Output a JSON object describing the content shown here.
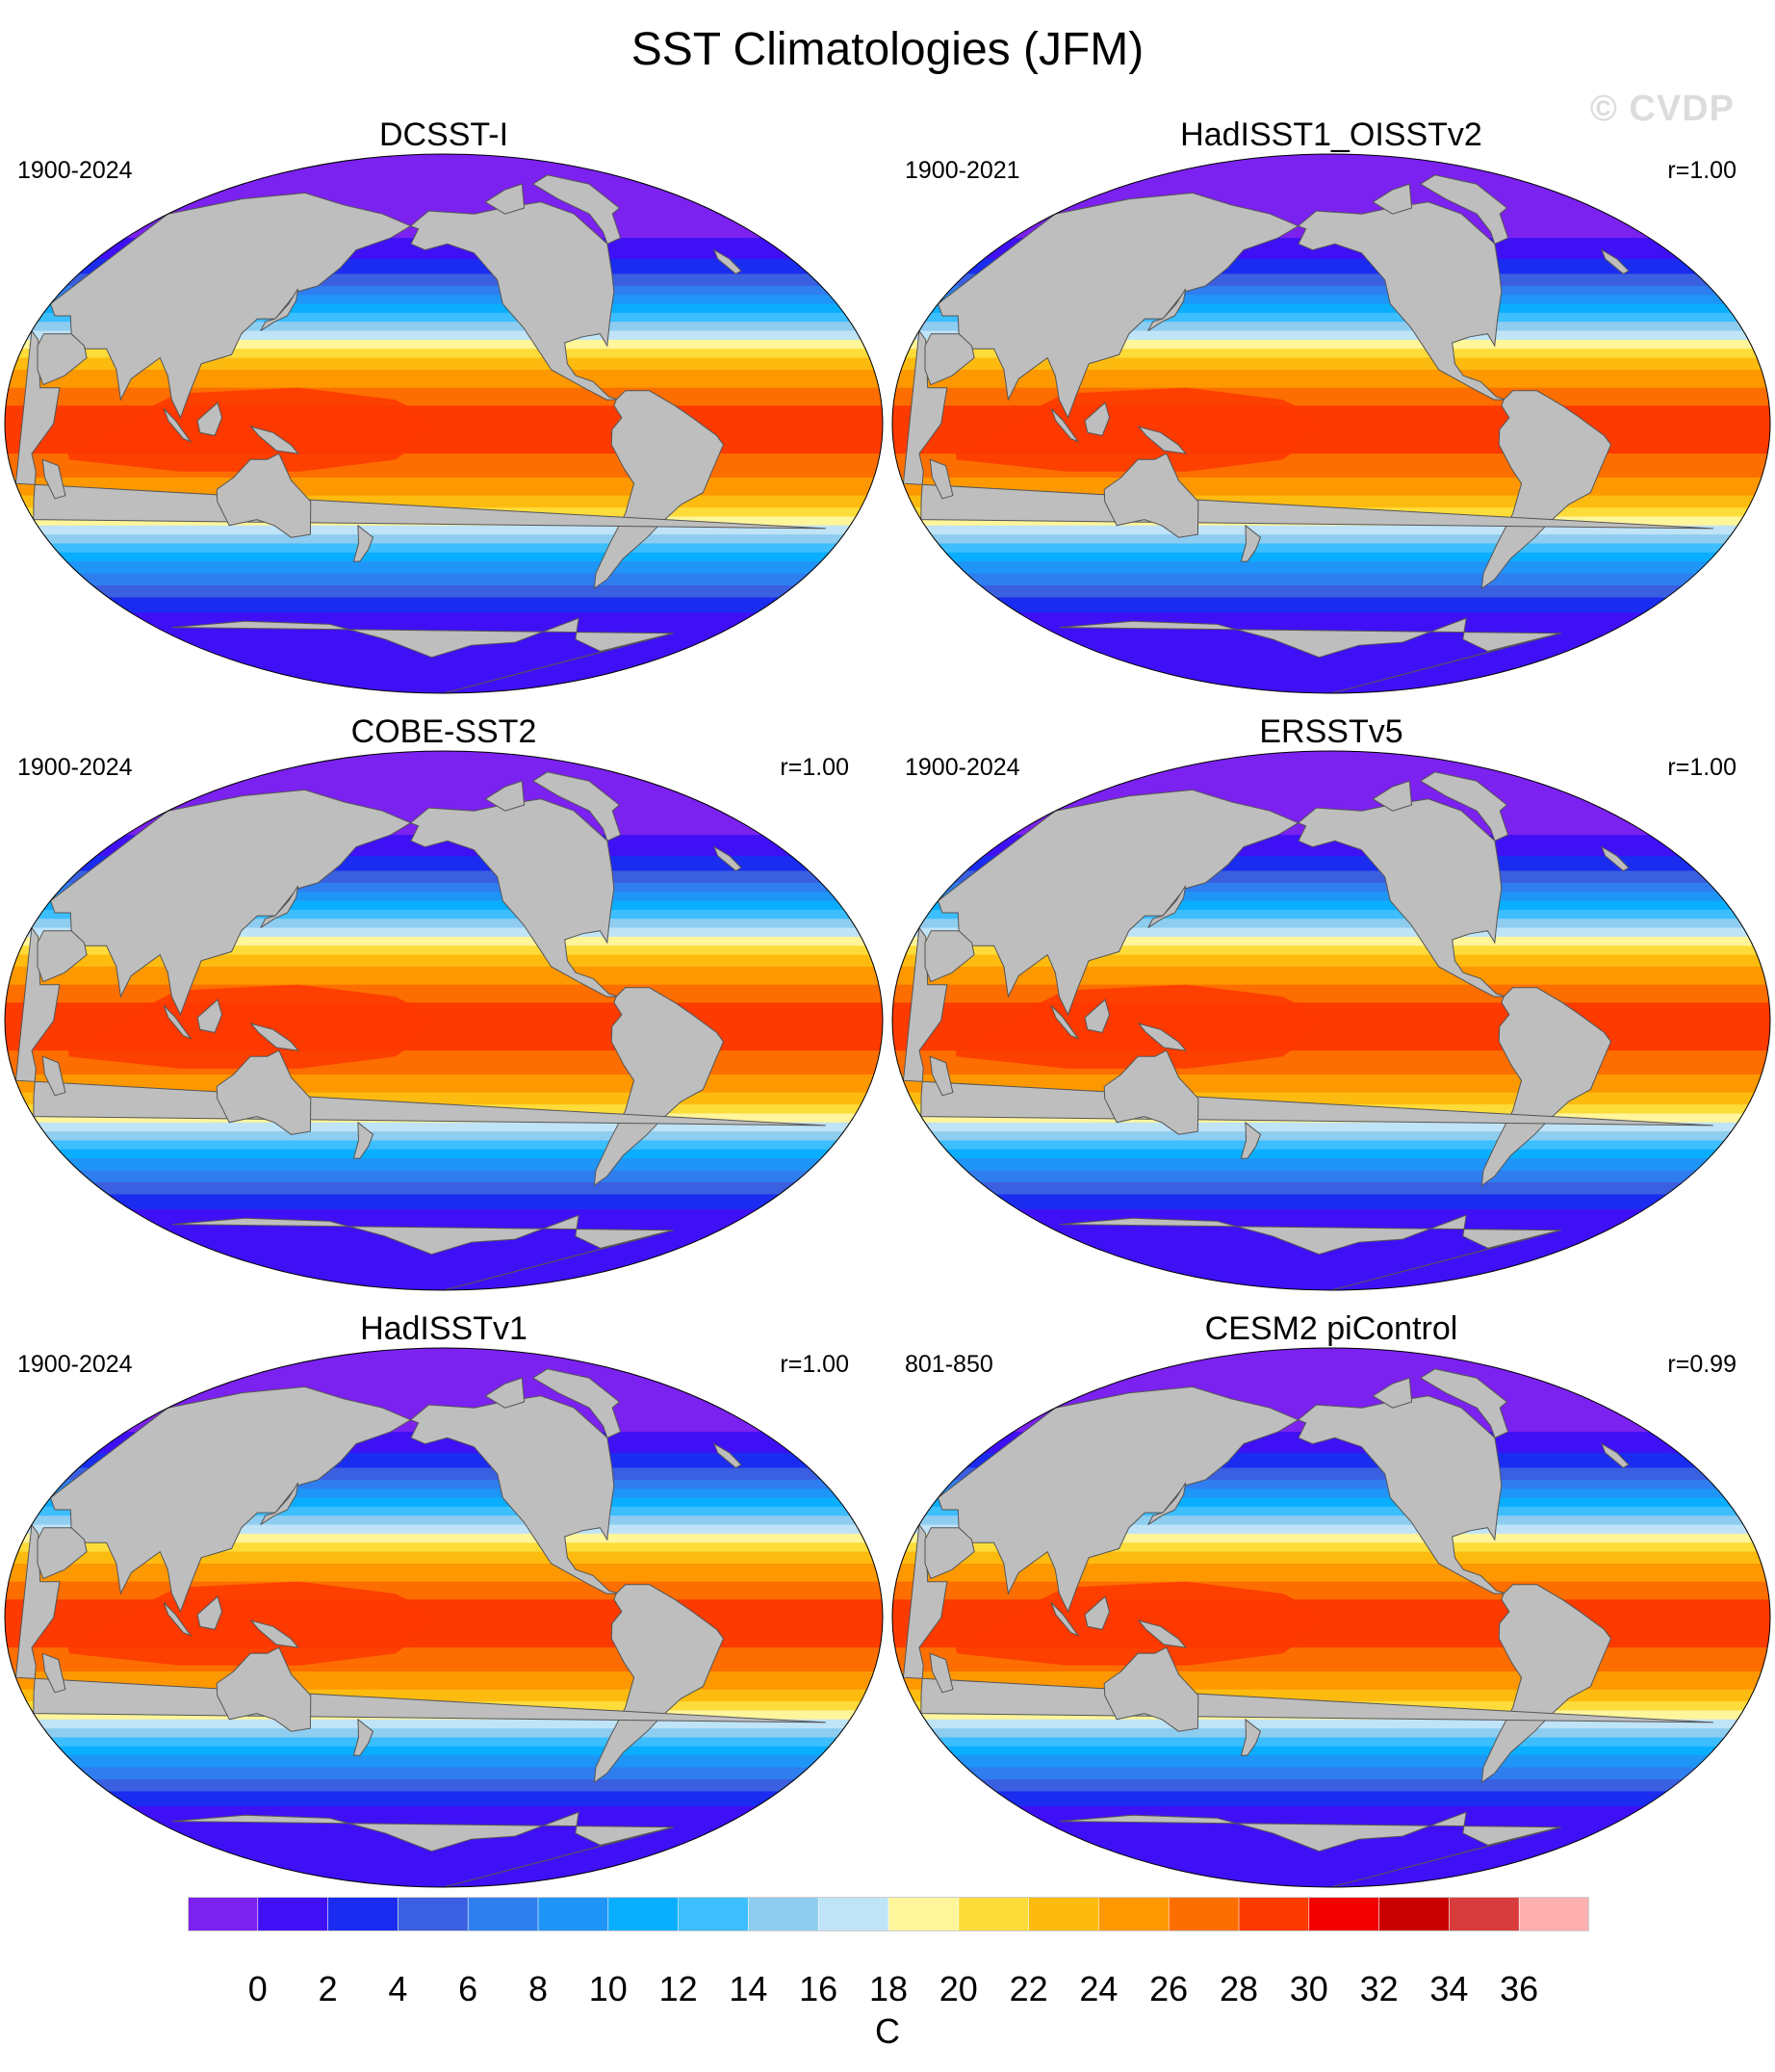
{
  "title": "SST Climatologies (JFM)",
  "watermark": "© CVDP",
  "panels": [
    {
      "name": "DCSST-I",
      "period": "1900-2024",
      "corr": ""
    },
    {
      "name": "HadISST1_OISSTv2",
      "period": "1900-2021",
      "corr": "r=1.00"
    },
    {
      "name": "COBE-SST2",
      "period": "1900-2024",
      "corr": "r=1.00"
    },
    {
      "name": "ERSSTv5",
      "period": "1900-2024",
      "corr": "r=1.00"
    },
    {
      "name": "HadISSTv1",
      "period": "1900-2024",
      "corr": "r=1.00"
    },
    {
      "name": "CESM2 piControl",
      "period": "801-850",
      "corr": "r=0.99"
    }
  ],
  "colorbar": {
    "colors": [
      "#7b21f0",
      "#3f10f5",
      "#1a2cf0",
      "#3a5fe0",
      "#2f7ef0",
      "#1f95f7",
      "#0aaeff",
      "#3cbeff",
      "#8ecdf0",
      "#bfe3f7",
      "#fff59b",
      "#fddc3a",
      "#fdbb10",
      "#fd9800",
      "#fd6e00",
      "#fd3a00",
      "#f20000",
      "#c80000",
      "#d93c3c",
      "#ffb0b0"
    ],
    "ticks": [
      "0",
      "2",
      "4",
      "6",
      "8",
      "10",
      "12",
      "14",
      "16",
      "18",
      "20",
      "22",
      "24",
      "26",
      "28",
      "30",
      "32",
      "34",
      "36"
    ],
    "units": "C"
  },
  "colors": {
    "land": "#bebebe",
    "land_outline": "#555555"
  }
}
